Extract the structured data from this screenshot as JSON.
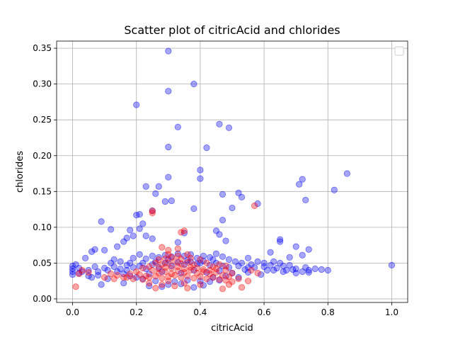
{
  "chart_data": {
    "type": "scatter",
    "title": "Scatter plot of citricAcid and chlorides",
    "xlabel": "citricAcid",
    "ylabel": "chlorides",
    "xlim": [
      -0.05,
      1.05
    ],
    "ylim": [
      -0.005,
      0.36
    ],
    "x_ticks": [
      0.0,
      0.2,
      0.4,
      0.6,
      0.8,
      1.0
    ],
    "x_tick_labels": [
      "0.0",
      "0.2",
      "0.4",
      "0.6",
      "0.8",
      "1.0"
    ],
    "y_ticks": [
      0.0,
      0.05,
      0.1,
      0.15,
      0.2,
      0.25,
      0.3,
      0.35
    ],
    "y_tick_labels": [
      "0.00",
      "0.05",
      "0.10",
      "0.15",
      "0.20",
      "0.25",
      "0.30",
      "0.35"
    ],
    "grid": true,
    "legend": "top-right",
    "legend_entries": [],
    "marker_opacity": 0.35,
    "series": [
      {
        "color": "#0000ff",
        "points": [
          [
            0.3,
            0.346
          ],
          [
            0.38,
            0.3
          ],
          [
            0.3,
            0.29
          ],
          [
            0.2,
            0.271
          ],
          [
            0.46,
            0.244
          ],
          [
            0.33,
            0.24
          ],
          [
            0.49,
            0.239
          ],
          [
            0.3,
            0.212
          ],
          [
            0.42,
            0.211
          ],
          [
            0.4,
            0.18
          ],
          [
            0.3,
            0.17
          ],
          [
            0.4,
            0.168
          ],
          [
            0.72,
            0.167
          ],
          [
            0.71,
            0.16
          ],
          [
            0.86,
            0.175
          ],
          [
            0.82,
            0.152
          ],
          [
            0.23,
            0.157
          ],
          [
            0.27,
            0.157
          ],
          [
            0.26,
            0.147
          ],
          [
            0.47,
            0.146
          ],
          [
            0.52,
            0.148
          ],
          [
            0.53,
            0.142
          ],
          [
            0.73,
            0.138
          ],
          [
            0.29,
            0.136
          ],
          [
            0.31,
            0.137
          ],
          [
            0.58,
            0.133
          ],
          [
            0.38,
            0.126
          ],
          [
            0.5,
            0.127
          ],
          [
            0.25,
            0.123
          ],
          [
            0.2,
            0.117
          ],
          [
            0.21,
            0.118
          ],
          [
            0.47,
            0.11
          ],
          [
            0.09,
            0.108
          ],
          [
            0.22,
            0.105
          ],
          [
            0.12,
            0.097
          ],
          [
            0.18,
            0.096
          ],
          [
            0.21,
            0.098
          ],
          [
            0.45,
            0.095
          ],
          [
            0.46,
            0.09
          ],
          [
            0.35,
            0.092
          ],
          [
            0.17,
            0.085
          ],
          [
            0.19,
            0.088
          ],
          [
            0.23,
            0.088
          ],
          [
            0.65,
            0.083
          ],
          [
            0.65,
            0.08
          ],
          [
            0.16,
            0.08
          ],
          [
            0.25,
            0.084
          ],
          [
            0.33,
            0.079
          ],
          [
            0.48,
            0.081
          ],
          [
            0.14,
            0.073
          ],
          [
            0.7,
            0.073
          ],
          [
            0.74,
            0.069
          ],
          [
            0.06,
            0.066
          ],
          [
            0.07,
            0.069
          ],
          [
            0.1,
            0.068
          ],
          [
            0.62,
            0.065
          ],
          [
            0.72,
            0.061
          ],
          [
            0.68,
            0.058
          ],
          [
            0.04,
            0.057
          ],
          [
            0.13,
            0.055
          ],
          [
            0.55,
            0.057
          ],
          [
            1.0,
            0.047
          ],
          [
            0.78,
            0.041
          ],
          [
            0.8,
            0.04
          ],
          [
            0.02,
            0.043
          ],
          [
            0.0,
            0.042
          ],
          [
            0.0,
            0.034
          ],
          [
            0.05,
            0.032
          ],
          [
            0.06,
            0.03
          ],
          [
            0.08,
            0.033
          ],
          [
            0.09,
            0.02
          ],
          [
            0.11,
            0.028
          ],
          [
            0.16,
            0.022
          ],
          [
            0.24,
            0.018
          ],
          [
            0.28,
            0.017
          ],
          [
            0.3,
            0.02
          ],
          [
            0.34,
            0.021
          ],
          [
            0.38,
            0.016
          ],
          [
            0.41,
            0.019
          ],
          [
            0.43,
            0.024
          ],
          [
            0.46,
            0.026
          ],
          [
            0.52,
            0.03
          ],
          [
            0.55,
            0.037
          ],
          [
            0.59,
            0.034
          ],
          [
            0.63,
            0.04
          ],
          [
            0.66,
            0.046
          ],
          [
            0.69,
            0.041
          ],
          [
            0.74,
            0.037
          ],
          [
            0.01,
            0.048
          ],
          [
            0.03,
            0.038
          ],
          [
            0.07,
            0.045
          ],
          [
            0.1,
            0.043
          ],
          [
            0.12,
            0.05
          ],
          [
            0.15,
            0.052
          ],
          [
            0.17,
            0.047
          ],
          [
            0.19,
            0.057
          ],
          [
            0.21,
            0.062
          ],
          [
            0.23,
            0.056
          ],
          [
            0.25,
            0.06
          ],
          [
            0.27,
            0.058
          ],
          [
            0.29,
            0.061
          ],
          [
            0.31,
            0.059
          ],
          [
            0.33,
            0.063
          ],
          [
            0.35,
            0.06
          ],
          [
            0.37,
            0.062
          ],
          [
            0.39,
            0.057
          ],
          [
            0.41,
            0.06
          ],
          [
            0.43,
            0.058
          ],
          [
            0.45,
            0.063
          ],
          [
            0.47,
            0.059
          ],
          [
            0.49,
            0.055
          ],
          [
            0.51,
            0.052
          ],
          [
            0.53,
            0.05
          ],
          [
            0.56,
            0.048
          ],
          [
            0.58,
            0.052
          ],
          [
            0.6,
            0.045
          ],
          [
            0.62,
            0.047
          ],
          [
            0.64,
            0.043
          ],
          [
            0.67,
            0.04
          ],
          [
            0.7,
            0.042
          ],
          [
            0.72,
            0.038
          ],
          [
            0.76,
            0.042
          ],
          [
            0.14,
            0.038
          ],
          [
            0.16,
            0.035
          ],
          [
            0.18,
            0.032
          ],
          [
            0.2,
            0.03
          ],
          [
            0.22,
            0.028
          ],
          [
            0.26,
            0.025
          ],
          [
            0.32,
            0.024
          ],
          [
            0.36,
            0.026
          ],
          [
            0.4,
            0.025
          ],
          [
            0.44,
            0.03
          ],
          [
            0.48,
            0.032
          ],
          [
            0.5,
            0.036
          ],
          [
            0.54,
            0.041
          ],
          [
            0.57,
            0.044
          ],
          [
            0.61,
            0.04
          ],
          [
            0.65,
            0.05
          ],
          [
            0.68,
            0.047
          ],
          [
            0.73,
            0.044
          ],
          [
            0.13,
            0.045
          ],
          [
            0.15,
            0.042
          ],
          [
            0.17,
            0.04
          ],
          [
            0.19,
            0.044
          ],
          [
            0.21,
            0.046
          ],
          [
            0.23,
            0.042
          ],
          [
            0.25,
            0.048
          ],
          [
            0.27,
            0.044
          ],
          [
            0.29,
            0.05
          ],
          [
            0.31,
            0.046
          ],
          [
            0.33,
            0.051
          ],
          [
            0.35,
            0.048
          ],
          [
            0.37,
            0.052
          ],
          [
            0.39,
            0.049
          ],
          [
            0.41,
            0.053
          ],
          [
            0.43,
            0.047
          ],
          [
            0.45,
            0.05
          ],
          [
            0.47,
            0.046
          ],
          [
            0.49,
            0.044
          ],
          [
            0.52,
            0.046
          ],
          [
            0.55,
            0.044
          ],
          [
            0.24,
            0.035
          ],
          [
            0.28,
            0.038
          ],
          [
            0.34,
            0.036
          ],
          [
            0.38,
            0.04
          ],
          [
            0.42,
            0.037
          ],
          [
            0.46,
            0.039
          ],
          [
            0.26,
            0.052
          ],
          [
            0.3,
            0.055
          ],
          [
            0.36,
            0.054
          ],
          [
            0.4,
            0.05
          ],
          [
            0.44,
            0.055
          ],
          [
            0.22,
            0.05
          ],
          [
            0.18,
            0.05
          ],
          [
            0.11,
            0.04
          ],
          [
            0.08,
            0.038
          ],
          [
            0.05,
            0.04
          ],
          [
            0.0,
            0.038
          ],
          [
            0.0,
            0.046
          ],
          [
            0.02,
            0.036
          ],
          [
            0.6,
            0.05
          ],
          [
            0.63,
            0.052
          ],
          [
            0.66,
            0.038
          ],
          [
            0.7,
            0.036
          ],
          [
            0.74,
            0.04
          ]
        ]
      },
      {
        "color": "#ff0000",
        "points": [
          [
            0.57,
            0.13
          ],
          [
            0.25,
            0.123
          ],
          [
            0.25,
            0.12
          ],
          [
            0.34,
            0.093
          ],
          [
            0.35,
            0.095
          ],
          [
            0.28,
            0.072
          ],
          [
            0.3,
            0.068
          ],
          [
            0.33,
            0.07
          ],
          [
            0.01,
            0.017
          ],
          [
            0.36,
            0.015
          ],
          [
            0.47,
            0.014
          ],
          [
            0.53,
            0.016
          ],
          [
            0.55,
            0.025
          ],
          [
            0.4,
            0.02
          ],
          [
            0.24,
            0.022
          ],
          [
            0.26,
            0.015
          ],
          [
            0.1,
            0.03
          ],
          [
            0.13,
            0.028
          ],
          [
            0.16,
            0.03
          ],
          [
            0.19,
            0.028
          ],
          [
            0.22,
            0.027
          ],
          [
            0.24,
            0.03
          ],
          [
            0.26,
            0.032
          ],
          [
            0.28,
            0.029
          ],
          [
            0.3,
            0.031
          ],
          [
            0.32,
            0.033
          ],
          [
            0.34,
            0.03
          ],
          [
            0.36,
            0.032
          ],
          [
            0.38,
            0.029
          ],
          [
            0.4,
            0.031
          ],
          [
            0.42,
            0.028
          ],
          [
            0.44,
            0.03
          ],
          [
            0.46,
            0.027
          ],
          [
            0.48,
            0.026
          ],
          [
            0.5,
            0.024
          ],
          [
            0.52,
            0.028
          ],
          [
            0.27,
            0.036
          ],
          [
            0.29,
            0.038
          ],
          [
            0.31,
            0.035
          ],
          [
            0.33,
            0.039
          ],
          [
            0.35,
            0.037
          ],
          [
            0.37,
            0.04
          ],
          [
            0.39,
            0.036
          ],
          [
            0.41,
            0.038
          ],
          [
            0.43,
            0.035
          ],
          [
            0.45,
            0.037
          ],
          [
            0.47,
            0.033
          ],
          [
            0.49,
            0.031
          ],
          [
            0.25,
            0.04
          ],
          [
            0.27,
            0.042
          ],
          [
            0.29,
            0.044
          ],
          [
            0.31,
            0.043
          ],
          [
            0.33,
            0.045
          ],
          [
            0.35,
            0.042
          ],
          [
            0.37,
            0.044
          ],
          [
            0.39,
            0.043
          ],
          [
            0.41,
            0.041
          ],
          [
            0.43,
            0.04
          ],
          [
            0.45,
            0.042
          ],
          [
            0.3,
            0.05
          ],
          [
            0.32,
            0.052
          ],
          [
            0.34,
            0.049
          ],
          [
            0.36,
            0.051
          ],
          [
            0.38,
            0.048
          ],
          [
            0.28,
            0.048
          ],
          [
            0.26,
            0.05
          ],
          [
            0.24,
            0.045
          ],
          [
            0.22,
            0.043
          ],
          [
            0.2,
            0.038
          ],
          [
            0.18,
            0.035
          ],
          [
            0.14,
            0.033
          ],
          [
            0.12,
            0.035
          ],
          [
            0.05,
            0.037
          ],
          [
            0.03,
            0.04
          ],
          [
            0.02,
            0.035
          ],
          [
            0.56,
            0.04
          ],
          [
            0.58,
            0.036
          ],
          [
            0.48,
            0.04
          ],
          [
            0.5,
            0.036
          ],
          [
            0.31,
            0.058
          ],
          [
            0.34,
            0.056
          ],
          [
            0.37,
            0.057
          ],
          [
            0.29,
            0.056
          ],
          [
            0.33,
            0.06
          ],
          [
            0.36,
            0.062
          ],
          [
            0.3,
            0.062
          ],
          [
            0.27,
            0.055
          ],
          [
            0.4,
            0.055
          ],
          [
            0.42,
            0.05
          ],
          [
            0.23,
            0.032
          ],
          [
            0.21,
            0.034
          ],
          [
            0.17,
            0.03
          ],
          [
            0.44,
            0.045
          ],
          [
            0.46,
            0.048
          ],
          [
            0.48,
            0.046
          ],
          [
            0.49,
            0.02
          ],
          [
            0.3,
            0.025
          ],
          [
            0.35,
            0.022
          ],
          [
            0.28,
            0.02
          ],
          [
            0.32,
            0.018
          ]
        ]
      }
    ]
  }
}
